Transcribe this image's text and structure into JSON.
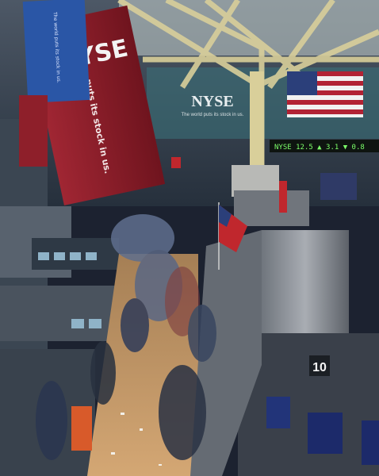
{
  "scene": {
    "wall_sign": "NYSE",
    "wall_subtitle": "The world puts its stock in us.",
    "red_banner_text": "puts its stock in us.",
    "blue_banner_text": "The world puts its stock in us.",
    "post_number": "10",
    "ticker_text": "NYSE 12.5 ▲ 3.1 ▼ 0.8",
    "colors": {
      "banner_red": "#8e1f2a",
      "banner_blue": "#2a56a6",
      "truss": "#d9cf9a",
      "floor": "#c89a64",
      "booth_gray": "#8a8f96",
      "ticker_green": "#7cff6a",
      "wall_dark": "#2d3a48"
    }
  }
}
